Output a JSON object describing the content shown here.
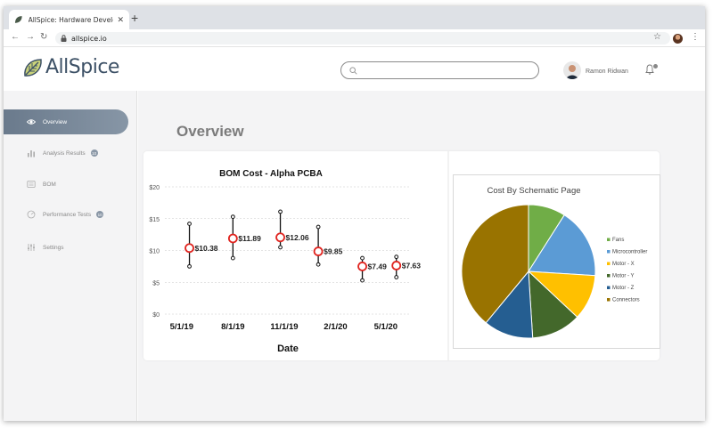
{
  "browser": {
    "tab_title": "AllSpice: Hardware Developme",
    "tab_close": "✕",
    "new_tab": "+",
    "url": "allspice.io",
    "back": "←",
    "forward": "→",
    "reload": "↻",
    "star": "☆",
    "menu": "⋮"
  },
  "app": {
    "logo_text": "AllSpice",
    "search_placeholder": "",
    "user_name": "Ramon Ridwan"
  },
  "sidebar": {
    "items": [
      {
        "label": "Overview",
        "icon": "eye-icon",
        "active": true
      },
      {
        "label": "Analysis Results",
        "icon": "bar-chart-icon",
        "badge": "10"
      },
      {
        "label": "BOM",
        "icon": "list-icon"
      },
      {
        "label": "Performance Tests",
        "icon": "gauge-icon",
        "badge": "10"
      },
      {
        "label": "Settings",
        "icon": "sliders-icon"
      }
    ]
  },
  "main": {
    "title": "Overview"
  },
  "colors": {
    "accent": "#6a7a8c",
    "marker_red": "#e0241f",
    "pie": [
      "#70ad47",
      "#5b9bd5",
      "#ffc000",
      "#43682b",
      "#255e91",
      "#997300"
    ]
  },
  "chart_data": [
    {
      "type": "scatter",
      "title": "BOM Cost - Alpha PCBA",
      "xlabel": "Date",
      "ylabel": "",
      "x_ticks": [
        "5/1/19",
        "8/1/19",
        "11/1/19",
        "2/1/20",
        "5/1/20"
      ],
      "x_range": [
        "2019-04-01",
        "2020-06-15"
      ],
      "y_ticks": [
        "$20",
        "$15",
        "$10",
        "$5",
        "$0"
      ],
      "ylim": [
        0,
        20
      ],
      "grid": true,
      "points": [
        {
          "x": "2019-05-15",
          "y": 10.38,
          "low": 7.5,
          "high": 14.2,
          "label": "$10.38"
        },
        {
          "x": "2019-08-01",
          "y": 11.89,
          "low": 8.8,
          "high": 15.3,
          "label": "$11.89"
        },
        {
          "x": "2019-10-25",
          "y": 12.06,
          "low": 10.5,
          "high": 16.1,
          "label": "$12.06"
        },
        {
          "x": "2020-01-01",
          "y": 9.85,
          "low": 7.8,
          "high": 13.7,
          "label": "$9.85"
        },
        {
          "x": "2020-03-20",
          "y": 7.49,
          "low": 5.3,
          "high": 8.8,
          "label": "$7.49"
        },
        {
          "x": "2020-05-20",
          "y": 7.63,
          "low": 5.8,
          "high": 9.0,
          "label": "$7.63"
        }
      ]
    },
    {
      "type": "pie",
      "title": "Cost By Schematic Page",
      "legend_position": "right",
      "slices": [
        {
          "name": "Fans",
          "value": 9
        },
        {
          "name": "Microcontroller",
          "value": 17
        },
        {
          "name": "Motor - X",
          "value": 11
        },
        {
          "name": "Motor - Y",
          "value": 12
        },
        {
          "name": "Motor - Z",
          "value": 12
        },
        {
          "name": "Connectors",
          "value": 39
        }
      ]
    }
  ]
}
